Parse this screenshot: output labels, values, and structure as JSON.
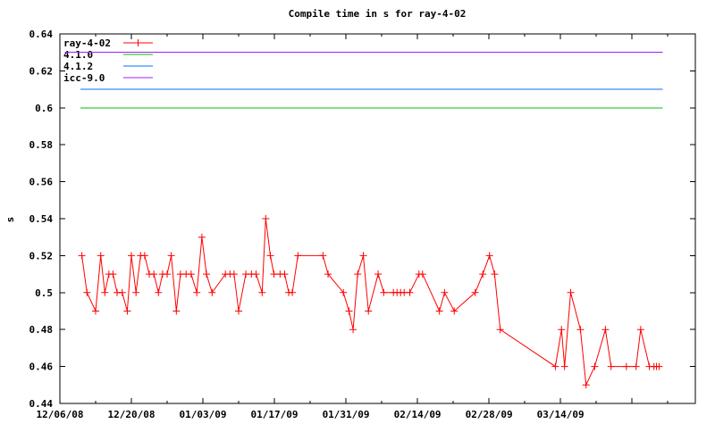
{
  "title": "Compile time in s for ray-4-02",
  "colors": {
    "red": "#ff0000",
    "green": "#00c000",
    "blue": "#0072ff",
    "purple": "#a020f0",
    "axis": "#000000",
    "text": "#000000",
    "background": "#ffffff"
  },
  "legend": {
    "position": "top-left",
    "entries": [
      {
        "label": "ray-4-02",
        "series": "ray-4-02",
        "style": "linespoints",
        "color_key": "red"
      },
      {
        "label": "4.1.0",
        "series": "4.1.0",
        "style": "line",
        "color_key": "green"
      },
      {
        "label": "4.1.2",
        "series": "4.1.2",
        "style": "line",
        "color_key": "blue"
      },
      {
        "label": "icc-9.0",
        "series": "icc-9.0",
        "style": "line",
        "color_key": "purple"
      }
    ]
  },
  "chart_data": {
    "type": "line",
    "title": "Compile time in s for ray-4-02",
    "xlabel": "",
    "ylabel": "s",
    "grid": false,
    "ylim": [
      0.44,
      0.64
    ],
    "xlim_days": [
      0,
      124.4
    ],
    "x_day0_date": "12/06/08",
    "yticks": [
      {
        "value": 0.44,
        "label": "0.44"
      },
      {
        "value": 0.46,
        "label": "0.46"
      },
      {
        "value": 0.48,
        "label": "0.48"
      },
      {
        "value": 0.5,
        "label": "0.5"
      },
      {
        "value": 0.52,
        "label": "0.52"
      },
      {
        "value": 0.54,
        "label": "0.54"
      },
      {
        "value": 0.56,
        "label": "0.56"
      },
      {
        "value": 0.58,
        "label": "0.58"
      },
      {
        "value": 0.6,
        "label": "0.6"
      },
      {
        "value": 0.62,
        "label": "0.62"
      },
      {
        "value": 0.64,
        "label": "0.64"
      }
    ],
    "xticks_major": [
      {
        "day": 0,
        "label": "12/06/08"
      },
      {
        "day": 14,
        "label": "12/20/08"
      },
      {
        "day": 28,
        "label": "01/03/09"
      },
      {
        "day": 42,
        "label": "01/17/09"
      },
      {
        "day": 56,
        "label": "01/31/09"
      },
      {
        "day": 70,
        "label": "02/14/09"
      },
      {
        "day": 84,
        "label": "02/28/09"
      },
      {
        "day": 98,
        "label": "03/14/09"
      },
      {
        "day": 112,
        "label": ""
      }
    ],
    "xticks_minor_days": [
      7,
      21,
      35,
      49,
      63,
      77,
      91,
      105,
      119
    ],
    "series": [
      {
        "name": "ray-4-02",
        "type": "linespoints",
        "marker": "plus",
        "color_key": "red",
        "points": [
          [
            4.3,
            0.52
          ],
          [
            5.3,
            0.5
          ],
          [
            7,
            0.49
          ],
          [
            8,
            0.52
          ],
          [
            8.8,
            0.5
          ],
          [
            9.6,
            0.51
          ],
          [
            10.4,
            0.51
          ],
          [
            11.2,
            0.5
          ],
          [
            12.2,
            0.5
          ],
          [
            13.2,
            0.49
          ],
          [
            14,
            0.52
          ],
          [
            14.9,
            0.5
          ],
          [
            15.8,
            0.52
          ],
          [
            16.6,
            0.52
          ],
          [
            17.5,
            0.51
          ],
          [
            18.4,
            0.51
          ],
          [
            19.3,
            0.5
          ],
          [
            20.1,
            0.51
          ],
          [
            21,
            0.51
          ],
          [
            21.8,
            0.52
          ],
          [
            22.8,
            0.49
          ],
          [
            23.6,
            0.51
          ],
          [
            24.7,
            0.51
          ],
          [
            25.7,
            0.51
          ],
          [
            26.8,
            0.5
          ],
          [
            27.8,
            0.53
          ],
          [
            28.7,
            0.51
          ],
          [
            29.8,
            0.5
          ],
          [
            32.4,
            0.51
          ],
          [
            33.3,
            0.51
          ],
          [
            34.1,
            0.51
          ],
          [
            35,
            0.49
          ],
          [
            36.4,
            0.51
          ],
          [
            37.5,
            0.51
          ],
          [
            38.4,
            0.51
          ],
          [
            39.6,
            0.5
          ],
          [
            40.3,
            0.54
          ],
          [
            41.2,
            0.52
          ],
          [
            41.9,
            0.51
          ],
          [
            43.1,
            0.51
          ],
          [
            44,
            0.51
          ],
          [
            44.8,
            0.5
          ],
          [
            45.5,
            0.5
          ],
          [
            46.6,
            0.52
          ],
          [
            51.5,
            0.52
          ],
          [
            52.5,
            0.51
          ],
          [
            55.5,
            0.5
          ],
          [
            56.6,
            0.49
          ],
          [
            57.4,
            0.48
          ],
          [
            58.3,
            0.51
          ],
          [
            59.4,
            0.52
          ],
          [
            60.4,
            0.49
          ],
          [
            62.3,
            0.51
          ],
          [
            63.4,
            0.5
          ],
          [
            65.3,
            0.5
          ],
          [
            66,
            0.5
          ],
          [
            66.7,
            0.5
          ],
          [
            67.4,
            0.5
          ],
          [
            68.5,
            0.5
          ],
          [
            70.3,
            0.51
          ],
          [
            71,
            0.51
          ],
          [
            74.3,
            0.49
          ],
          [
            75.3,
            0.5
          ],
          [
            77.2,
            0.49
          ],
          [
            81.3,
            0.5
          ],
          [
            82.8,
            0.51
          ],
          [
            84.1,
            0.52
          ],
          [
            85.1,
            0.51
          ],
          [
            86.2,
            0.48
          ],
          [
            97,
            0.46
          ],
          [
            98.2,
            0.48
          ],
          [
            98.8,
            0.46
          ],
          [
            100,
            0.5
          ],
          [
            101.9,
            0.48
          ],
          [
            103,
            0.45
          ],
          [
            104.7,
            0.46
          ],
          [
            106.8,
            0.48
          ],
          [
            107.9,
            0.46
          ],
          [
            110.9,
            0.46
          ],
          [
            112.8,
            0.46
          ],
          [
            113.7,
            0.48
          ],
          [
            115.4,
            0.46
          ],
          [
            116.3,
            0.46
          ],
          [
            116.8,
            0.46
          ],
          [
            117.3,
            0.46
          ]
        ]
      },
      {
        "name": "4.1.0",
        "type": "hline",
        "value": 0.6,
        "span_days": [
          4,
          118
        ],
        "color_key": "green"
      },
      {
        "name": "4.1.2",
        "type": "hline",
        "value": 0.61,
        "span_days": [
          4,
          118
        ],
        "color_key": "blue"
      },
      {
        "name": "icc-9.0",
        "type": "hline",
        "value": 0.63,
        "span_days": [
          1,
          118
        ],
        "color_key": "purple"
      }
    ]
  }
}
